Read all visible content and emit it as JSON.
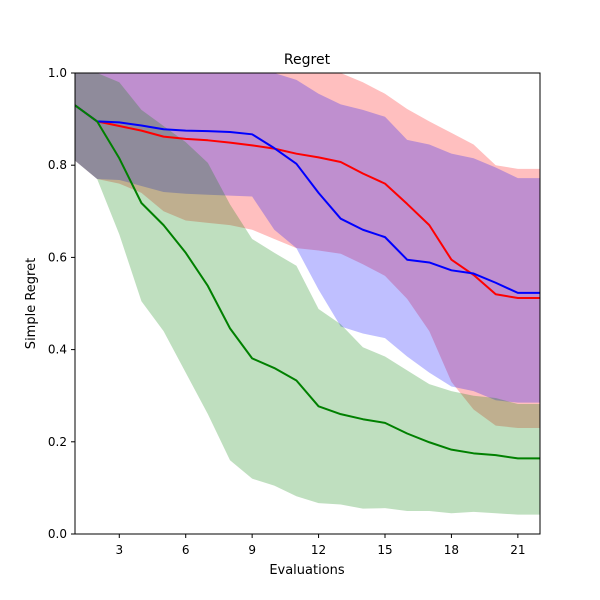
{
  "chart_data": {
    "type": "line",
    "title": "Regret",
    "xlabel": "Evaluations",
    "ylabel": "Simple Regret",
    "xlim": [
      1,
      22
    ],
    "ylim": [
      0,
      1
    ],
    "xticks": [
      3,
      6,
      9,
      12,
      15,
      18,
      21
    ],
    "yticks": [
      0.0,
      0.2,
      0.4,
      0.6,
      0.8,
      1.0
    ],
    "grid": false,
    "x": [
      1,
      2,
      3,
      4,
      5,
      6,
      7,
      8,
      9,
      10,
      11,
      12,
      13,
      14,
      15,
      16,
      17,
      18,
      19,
      20,
      21,
      22
    ],
    "series": [
      {
        "color": "#ff0000",
        "band_color": "#ff0000",
        "band_opacity": 0.25,
        "mean": [
          0.93,
          0.895,
          0.885,
          0.875,
          0.862,
          0.857,
          0.854,
          0.849,
          0.843,
          0.836,
          0.825,
          0.817,
          0.807,
          0.782,
          0.76,
          0.716,
          0.67,
          0.595,
          0.562,
          0.52,
          0.512,
          0.512
        ],
        "lower": [
          0.81,
          0.77,
          0.76,
          0.74,
          0.7,
          0.68,
          0.675,
          0.67,
          0.66,
          0.64,
          0.62,
          0.615,
          0.608,
          0.585,
          0.56,
          0.51,
          0.44,
          0.33,
          0.27,
          0.235,
          0.23,
          0.23
        ],
        "upper": [
          1.0,
          1.0,
          1.0,
          1.0,
          1.0,
          1.0,
          1.0,
          1.0,
          1.0,
          1.0,
          1.0,
          1.0,
          1.0,
          0.98,
          0.955,
          0.922,
          0.895,
          0.87,
          0.845,
          0.8,
          0.792,
          0.792
        ]
      },
      {
        "color": "#0000ff",
        "band_color": "#0000ff",
        "band_opacity": 0.25,
        "mean": [
          0.93,
          0.895,
          0.893,
          0.886,
          0.878,
          0.875,
          0.874,
          0.872,
          0.867,
          0.837,
          0.803,
          0.74,
          0.684,
          0.66,
          0.644,
          0.595,
          0.589,
          0.572,
          0.565,
          0.545,
          0.523,
          0.523
        ],
        "lower": [
          0.81,
          0.77,
          0.768,
          0.755,
          0.742,
          0.738,
          0.736,
          0.734,
          0.732,
          0.66,
          0.62,
          0.53,
          0.45,
          0.435,
          0.425,
          0.385,
          0.35,
          0.32,
          0.31,
          0.29,
          0.285,
          0.285
        ],
        "upper": [
          1.0,
          1.0,
          1.0,
          1.0,
          1.0,
          1.0,
          1.0,
          1.0,
          1.0,
          1.0,
          0.985,
          0.955,
          0.932,
          0.92,
          0.905,
          0.855,
          0.845,
          0.825,
          0.815,
          0.795,
          0.772,
          0.772
        ]
      },
      {
        "color": "#008000",
        "band_color": "#008000",
        "band_opacity": 0.25,
        "mean": [
          0.93,
          0.895,
          0.815,
          0.718,
          0.67,
          0.61,
          0.538,
          0.446,
          0.381,
          0.36,
          0.333,
          0.277,
          0.26,
          0.249,
          0.241,
          0.218,
          0.199,
          0.183,
          0.175,
          0.171,
          0.164,
          0.164
        ],
        "lower": [
          0.81,
          0.77,
          0.65,
          0.505,
          0.44,
          0.35,
          0.26,
          0.16,
          0.12,
          0.105,
          0.082,
          0.067,
          0.064,
          0.055,
          0.056,
          0.05,
          0.05,
          0.045,
          0.048,
          0.045,
          0.042,
          0.042
        ],
        "upper": [
          1.0,
          1.0,
          0.98,
          0.92,
          0.885,
          0.85,
          0.805,
          0.715,
          0.64,
          0.61,
          0.582,
          0.488,
          0.455,
          0.405,
          0.385,
          0.355,
          0.325,
          0.31,
          0.3,
          0.295,
          0.282,
          0.282
        ]
      }
    ]
  }
}
